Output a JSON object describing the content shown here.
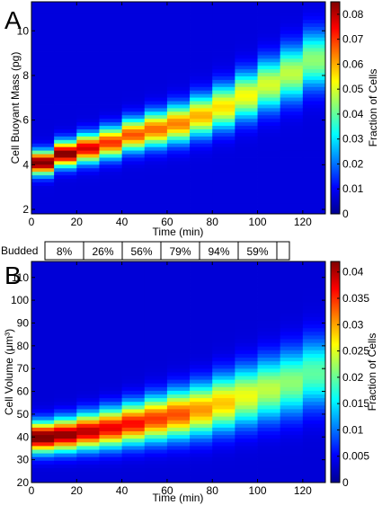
{
  "chart_data": [
    {
      "type": "heatmap",
      "panel_label": "A",
      "xlabel": "Time (min)",
      "ylabel": "Cell Buoyant Mass (pg)",
      "xlim": [
        0,
        130
      ],
      "ylim": [
        1.8,
        11.3
      ],
      "x_ticks": [
        0,
        20,
        40,
        60,
        80,
        100,
        120
      ],
      "y_ticks": [
        2,
        4,
        6,
        8,
        10
      ],
      "colorbar": {
        "label": "Fraction of Cells",
        "range": [
          0,
          0.085
        ],
        "ticks": [
          0,
          0.01,
          0.02,
          0.03,
          0.04,
          0.05,
          0.06,
          0.07,
          0.08
        ],
        "tick_labels": [
          "0",
          "0.01",
          "0.02",
          "0.03",
          "0.04",
          "0.05",
          "0.06",
          "0.07",
          "0.08"
        ],
        "colormap": "jet"
      },
      "time_bins": [
        0,
        10,
        20,
        30,
        40,
        50,
        60,
        70,
        80,
        90,
        100,
        110,
        120
      ],
      "distribution_peak": [
        4.1,
        4.5,
        4.75,
        5.0,
        5.35,
        5.6,
        5.85,
        6.2,
        6.6,
        7.1,
        7.6,
        8.1,
        8.7
      ],
      "peak_fraction": [
        0.08,
        0.078,
        0.07,
        0.063,
        0.06,
        0.058,
        0.056,
        0.052,
        0.048,
        0.045,
        0.042,
        0.04,
        0.036
      ],
      "distribution_spread": [
        0.35,
        0.38,
        0.42,
        0.45,
        0.48,
        0.52,
        0.56,
        0.6,
        0.65,
        0.7,
        0.75,
        0.8,
        0.85
      ]
    },
    {
      "type": "heatmap",
      "panel_label": "B",
      "xlabel": "Time (min)",
      "ylabel": "Cell Volume (μm³)",
      "xlim": [
        0,
        130
      ],
      "ylim": [
        20,
        117
      ],
      "x_ticks": [
        0,
        20,
        40,
        60,
        80,
        100,
        120
      ],
      "y_ticks": [
        20,
        30,
        40,
        50,
        60,
        70,
        80,
        90,
        100,
        110
      ],
      "colorbar": {
        "label": "Fraction of Cells",
        "range": [
          0,
          0.042
        ],
        "ticks": [
          0,
          0.005,
          0.01,
          0.015,
          0.02,
          0.025,
          0.03,
          0.035,
          0.04
        ],
        "tick_labels": [
          "0",
          "0.005",
          "0.01",
          "0.015",
          "0.02",
          "0.025",
          "0.03",
          "0.035",
          "0.04"
        ],
        "colormap": "jet"
      },
      "time_bins": [
        0,
        10,
        20,
        30,
        40,
        50,
        60,
        70,
        80,
        90,
        100,
        110,
        120
      ],
      "distribution_peak": [
        40,
        41,
        42.5,
        44,
        46,
        48,
        50,
        52,
        55,
        58,
        61,
        64,
        68
      ],
      "peak_fraction": [
        0.04,
        0.038,
        0.036,
        0.034,
        0.033,
        0.031,
        0.03,
        0.027,
        0.025,
        0.022,
        0.02,
        0.018,
        0.016
      ],
      "distribution_spread": [
        4.5,
        4.8,
        5.2,
        5.6,
        6.0,
        6.5,
        7.0,
        7.5,
        8.0,
        8.5,
        9.0,
        9.5,
        10.0
      ]
    }
  ],
  "budded": {
    "label": "Budded",
    "values": [
      "8%",
      "26%",
      "56%",
      "79%",
      "94%",
      "59%"
    ]
  }
}
